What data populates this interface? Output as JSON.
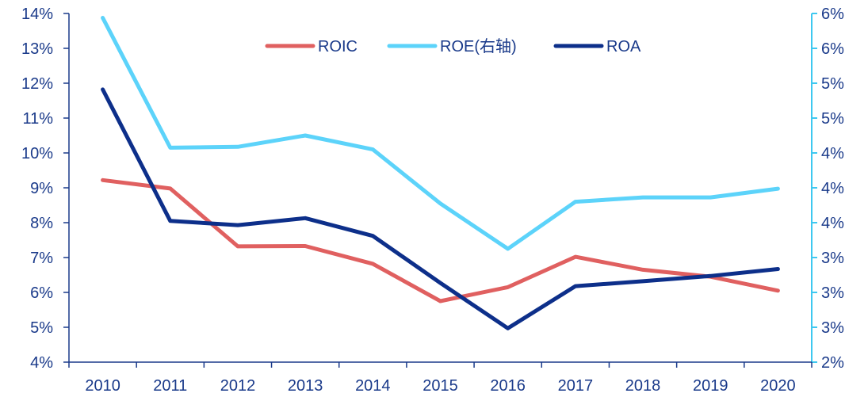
{
  "chart_data": {
    "type": "line",
    "categories": [
      "2010",
      "2011",
      "2012",
      "2013",
      "2014",
      "2015",
      "2016",
      "2017",
      "2018",
      "2019",
      "2020"
    ],
    "left_axis": {
      "min": 4,
      "max": 14,
      "step": 1,
      "tick_labels": [
        "4%",
        "5%",
        "6%",
        "7%",
        "8%",
        "9%",
        "10%",
        "11%",
        "12%",
        "13%",
        "14%"
      ],
      "color": "#1a3a8a"
    },
    "right_axis": {
      "min": 2,
      "max": 6,
      "tick_labels": [
        "2%",
        "3%",
        "3%",
        "3%",
        "4%",
        "4%",
        "4%",
        "5%",
        "5%",
        "6%",
        "6%"
      ],
      "color": "#3ec8f0"
    },
    "series": [
      {
        "name": "ROIC",
        "axis": "left",
        "color": "#e06060",
        "values": [
          9.22,
          8.98,
          7.32,
          7.33,
          6.82,
          5.75,
          6.15,
          7.02,
          6.65,
          6.45,
          6.05
        ]
      },
      {
        "name": "ROE(右轴)",
        "axis": "right",
        "color": "#5cd3fa",
        "values": [
          5.95,
          4.46,
          4.47,
          4.6,
          4.44,
          3.82,
          3.3,
          3.84,
          3.89,
          3.89,
          3.99
        ]
      },
      {
        "name": "ROA",
        "axis": "left",
        "color": "#0d2f8a",
        "values": [
          11.82,
          8.05,
          7.93,
          8.13,
          7.62,
          6.27,
          4.97,
          6.18,
          6.32,
          6.47,
          6.67
        ]
      }
    ],
    "legend": {
      "placement": "top-center"
    },
    "grid": false
  }
}
